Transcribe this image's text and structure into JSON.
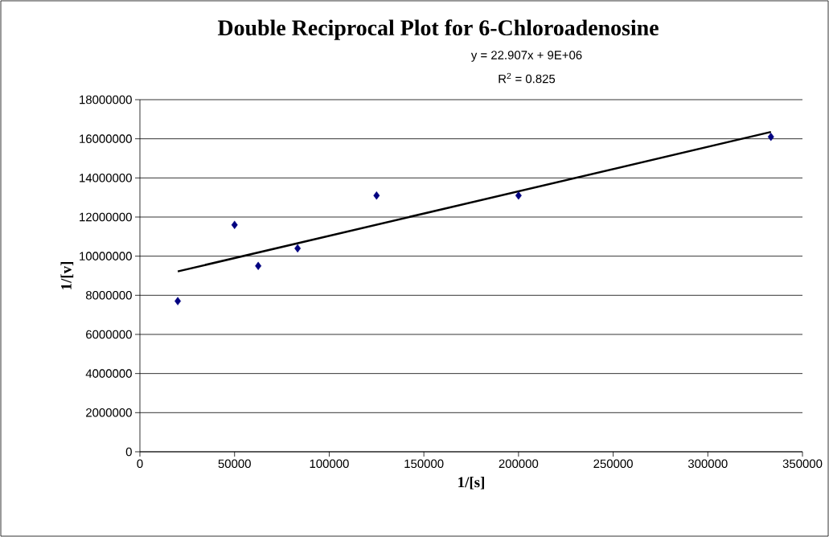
{
  "chart_data": {
    "type": "scatter",
    "title": "Double Reciprocal Plot for 6-Chloroadenosine",
    "xlabel": "1/[s]",
    "ylabel": "1/[v]",
    "annotations": [
      "y = 22.907x + 9E+06",
      "R$^{2}$ = 0.825"
    ],
    "series": [
      {
        "color": "#000080",
        "marker": "diamond",
        "x": [
          20000,
          50000,
          62500,
          83300,
          125000,
          200000,
          333333
        ],
        "values": [
          7700000,
          11600000,
          9500000,
          10400000,
          13100000,
          13100000,
          16100000
        ]
      },
      {
        "type": "line",
        "color": "#000000",
        "marker": "none",
        "x": [
          20000,
          333333
        ],
        "values": [
          9220000,
          16350000
        ]
      }
    ],
    "xlim": [
      0,
      350000
    ],
    "xticks": [
      0,
      50000,
      100000,
      150000,
      200000,
      250000,
      300000,
      350000
    ],
    "ylim": [
      0,
      18000000
    ],
    "yticks": [
      0,
      2000000,
      4000000,
      6000000,
      8000000,
      10000000,
      12000000,
      14000000,
      16000000,
      18000000
    ],
    "grid": "y"
  }
}
